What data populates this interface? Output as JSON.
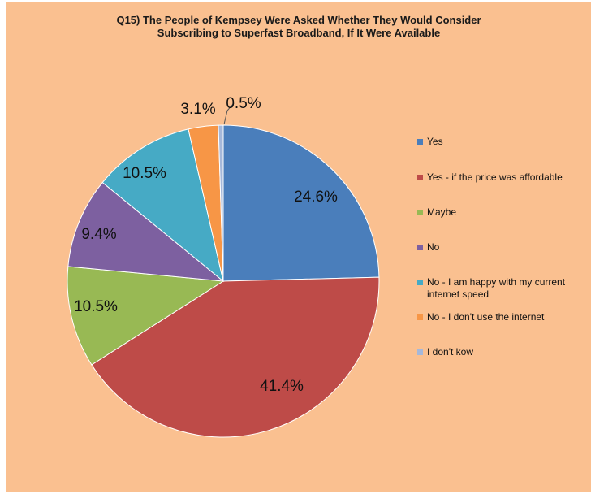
{
  "chart_data": {
    "type": "pie",
    "title": "Q15) The People of Kempsey Were Asked Whether They Would Consider Subscribing to Superfast Broadband, If It Were Available",
    "legend_position": "right",
    "categories": [
      "Yes",
      "Yes - if the price was affordable",
      "Maybe",
      "No",
      "No - I am happy with my current internet speed",
      "No - I don't use the internet",
      "I don't kow"
    ],
    "values": [
      24.6,
      41.4,
      10.5,
      9.4,
      10.5,
      3.1,
      0.5
    ],
    "labels": [
      "24.6%",
      "41.4%",
      "10.5%",
      "9.4%",
      "10.5%",
      "3.1%",
      "0.5%"
    ],
    "colors": [
      "#4a7ebb",
      "#be4b48",
      "#98b954",
      "#7d60a0",
      "#46aac5",
      "#f79646",
      "#a5b8da"
    ]
  }
}
